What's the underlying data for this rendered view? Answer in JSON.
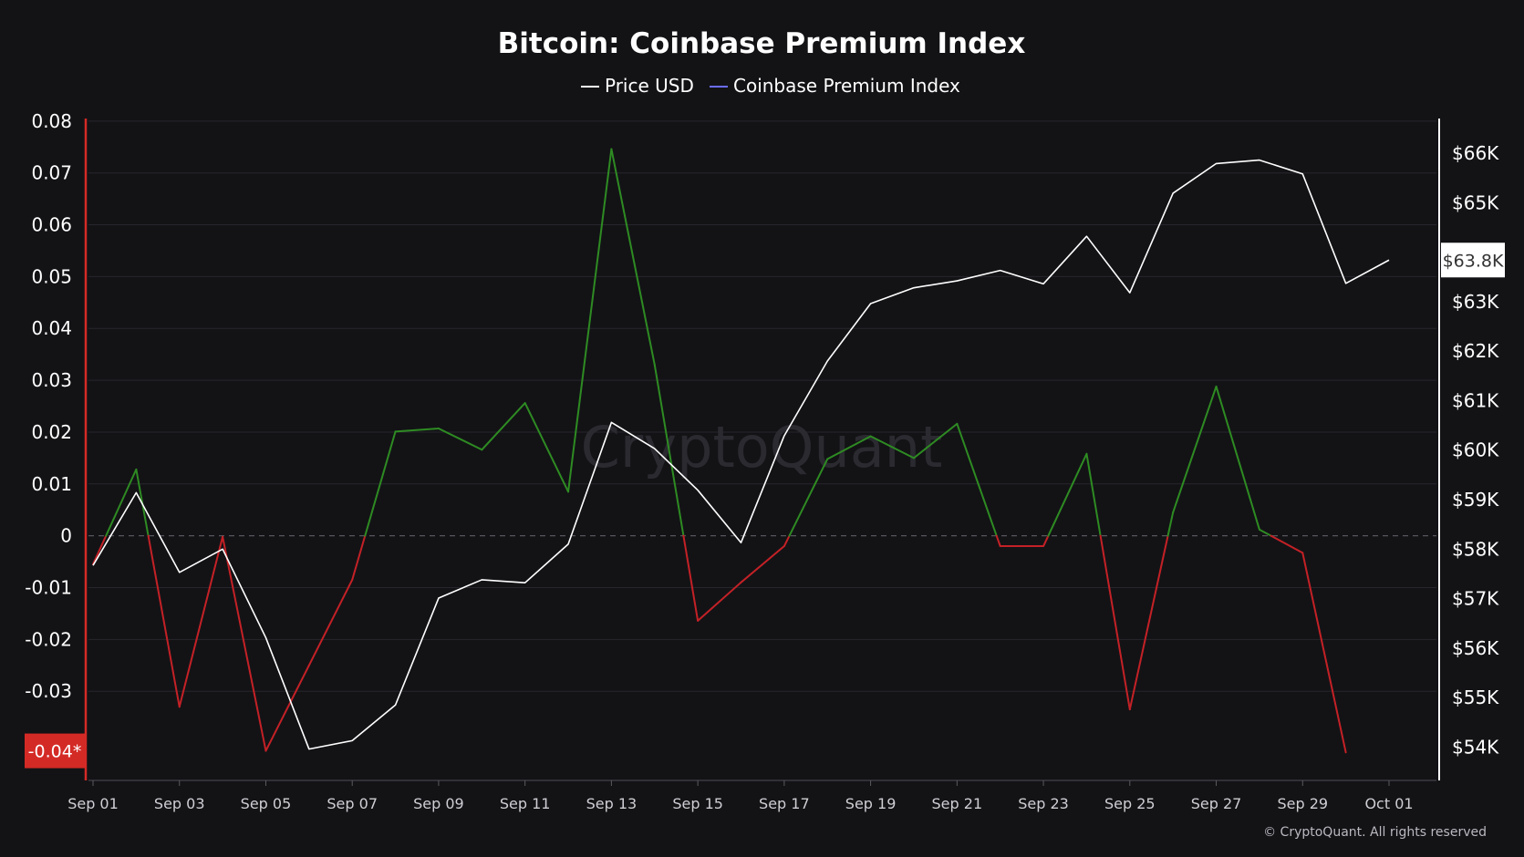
{
  "chart_data": {
    "type": "line",
    "title": "Bitcoin: Coinbase Premium Index",
    "legend": {
      "placement": "top-center",
      "items": [
        {
          "label": "Price USD",
          "color": "#ffffff"
        },
        {
          "label": "Coinbase Premium Index",
          "color": "#6a6cff"
        }
      ]
    },
    "x": [
      "2024-09-01",
      "2024-09-02",
      "2024-09-03",
      "2024-09-04",
      "2024-09-05",
      "2024-09-06",
      "2024-09-07",
      "2024-09-08",
      "2024-09-09",
      "2024-09-10",
      "2024-09-11",
      "2024-09-12",
      "2024-09-13",
      "2024-09-14",
      "2024-09-15",
      "2024-09-16",
      "2024-09-17",
      "2024-09-18",
      "2024-09-19",
      "2024-09-20",
      "2024-09-21",
      "2024-09-22",
      "2024-09-23",
      "2024-09-24",
      "2024-09-25",
      "2024-09-26",
      "2024-09-27",
      "2024-09-28",
      "2024-09-29",
      "2024-09-30",
      "2024-10-01"
    ],
    "x_tick_labels": [
      "Sep 01",
      "Sep 03",
      "Sep 05",
      "Sep 07",
      "Sep 09",
      "Sep 11",
      "Sep 13",
      "Sep 15",
      "Sep 17",
      "Sep 19",
      "Sep 21",
      "Sep 23",
      "Sep 25",
      "Sep 27",
      "Sep 29",
      "Oct 01"
    ],
    "series": [
      {
        "name": "Price USD",
        "axis": "right",
        "color": "#ffffff",
        "values": [
          57670,
          59140,
          57530,
          58000,
          56210,
          53960,
          54130,
          54850,
          57010,
          57380,
          57320,
          58100,
          60560,
          60030,
          59190,
          58130,
          60290,
          61800,
          62960,
          63280,
          63420,
          63630,
          63360,
          64320,
          63180,
          65190,
          65790,
          65860,
          65580,
          63370,
          63840
        ]
      },
      {
        "name": "Coinbase Premium Index",
        "axis": "left",
        "color_positive": "#2e8b22",
        "color_negative": "#c42126",
        "values": [
          -0.0055,
          0.0128,
          -0.033,
          -0.0002,
          -0.0415,
          -0.025,
          -0.0085,
          0.0201,
          0.0207,
          0.0166,
          0.0256,
          0.0085,
          0.0746,
          0.033,
          -0.0164,
          -0.009,
          -0.002,
          0.0148,
          0.0192,
          0.015,
          0.0216,
          -0.002,
          -0.002,
          0.0158,
          -0.0335,
          0.0045,
          0.0288,
          0.0012,
          -0.0033,
          -0.0418,
          null
        ]
      }
    ],
    "y_left": {
      "ticks": [
        0.08,
        0.07,
        0.06,
        0.05,
        0.04,
        0.03,
        0.02,
        0.01,
        0,
        -0.01,
        -0.02,
        -0.03
      ],
      "tick_labels": [
        "0.08",
        "0.07",
        "0.06",
        "0.05",
        "0.04",
        "0.03",
        "0.02",
        "0.01",
        "0",
        "-0.01",
        "-0.02",
        "-0.03"
      ],
      "ylim": [
        -0.0465,
        0.0805
      ]
    },
    "y_right": {
      "ticks": [
        66000,
        65000,
        63000,
        62000,
        61000,
        60000,
        59000,
        58000,
        57000,
        56000,
        55000,
        54000
      ],
      "tick_labels": [
        "$66K",
        "$65K",
        "$63K",
        "$62K",
        "$61K",
        "$60K",
        "$59K",
        "$58K",
        "$57K",
        "$56K",
        "$55K",
        "$54K"
      ],
      "ylim": [
        53400,
        66700
      ]
    },
    "markers": {
      "left_current": {
        "label": "-0.04*",
        "value": -0.0415,
        "background": "#d42a26"
      },
      "right_current": {
        "label": "$63.8K",
        "value": 63840,
        "background": "#ffffff"
      }
    },
    "zero_line": "dashed",
    "grid": true,
    "watermark": "CryptoQuant",
    "copyright": "© CryptoQuant. All rights reserved"
  }
}
